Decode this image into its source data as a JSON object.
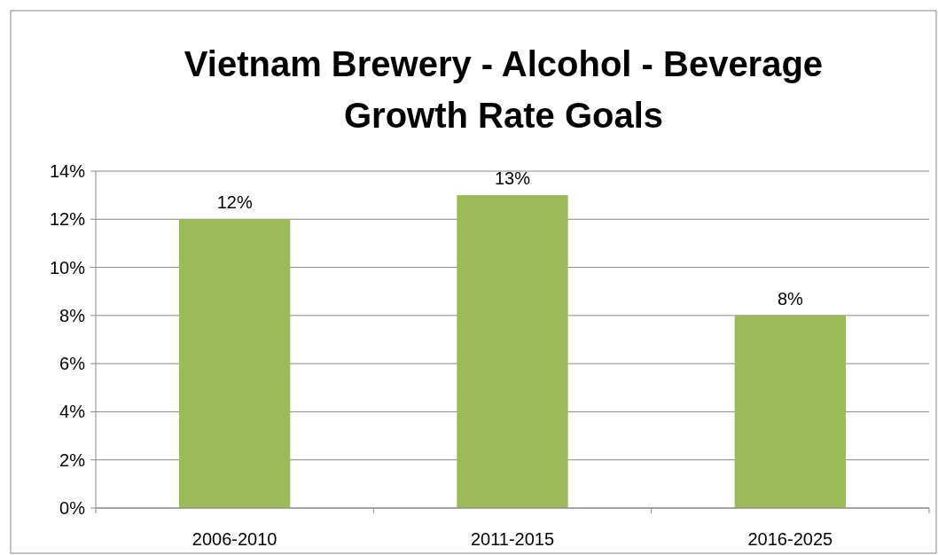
{
  "chart_data": {
    "type": "bar",
    "title": "Vietnam Brewery - Alcohol - Beverage Growth Rate Goals",
    "categories": [
      "2006-2010",
      "2011-2015",
      "2016-2025"
    ],
    "values": [
      12,
      13,
      8
    ],
    "color": "#9bbb59",
    "value_labels": [
      "12%",
      "13%",
      "8%"
    ],
    "ylim": [
      0,
      14
    ],
    "yticks": [
      {
        "value": 0,
        "label": "0%"
      },
      {
        "value": 2,
        "label": "2%"
      },
      {
        "value": 4,
        "label": "4%"
      },
      {
        "value": 6,
        "label": "6%"
      },
      {
        "value": 8,
        "label": "8%"
      },
      {
        "value": 10,
        "label": "10%"
      },
      {
        "value": 12,
        "label": "12%"
      },
      {
        "value": 14,
        "label": "14%"
      }
    ],
    "grid": "y"
  }
}
